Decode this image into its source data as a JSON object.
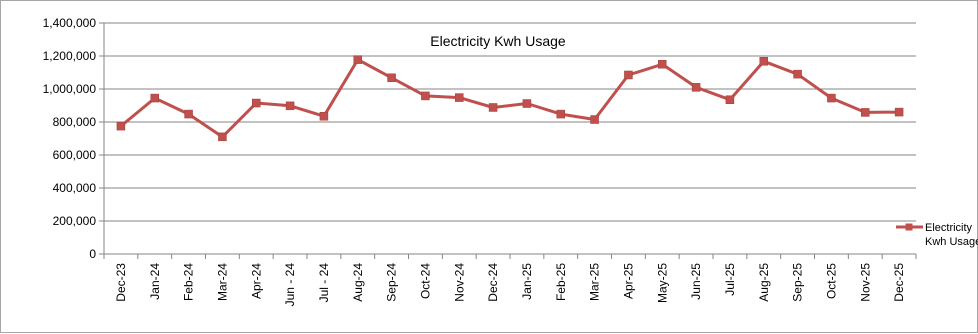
{
  "chart_data": {
    "type": "line",
    "title": "Electricity Kwh Usage",
    "xlabel": "",
    "ylabel": "",
    "ylim": [
      0,
      1400000
    ],
    "yticks": [
      "0",
      "200,000",
      "400,000",
      "600,000",
      "800,000",
      "1,000,000",
      "1,200,000",
      "1,400,000"
    ],
    "ytick_values": [
      0,
      200000,
      400000,
      600000,
      800000,
      1000000,
      1200000,
      1400000
    ],
    "categories": [
      "Dec-23",
      "Jan-24",
      "Feb-24",
      "Mar-24",
      "Apr-24",
      "Jun - 24",
      "Jul - 24",
      "Aug-24",
      "Sep-24",
      "Oct-24",
      "Nov-24",
      "Dec-24",
      "Jan-25",
      "Feb-25",
      "Mar-25",
      "Apr-25",
      "May-25",
      "Jun-25",
      "Jul-25",
      "Aug-25",
      "Sep-25",
      "Oct-25",
      "Nov-25",
      "Dec-25"
    ],
    "series": [
      {
        "name_lines": [
          "Electricity",
          "Kwh Usage"
        ],
        "color": "#c0504d",
        "values": [
          775000,
          945000,
          848000,
          710000,
          915000,
          898000,
          835000,
          1178000,
          1068000,
          958000,
          948000,
          888000,
          912000,
          848000,
          815000,
          1085000,
          1150000,
          1010000,
          935000,
          1168000,
          1090000,
          945000,
          858000,
          860000
        ]
      }
    ],
    "grid": true,
    "legend_position": "right"
  }
}
